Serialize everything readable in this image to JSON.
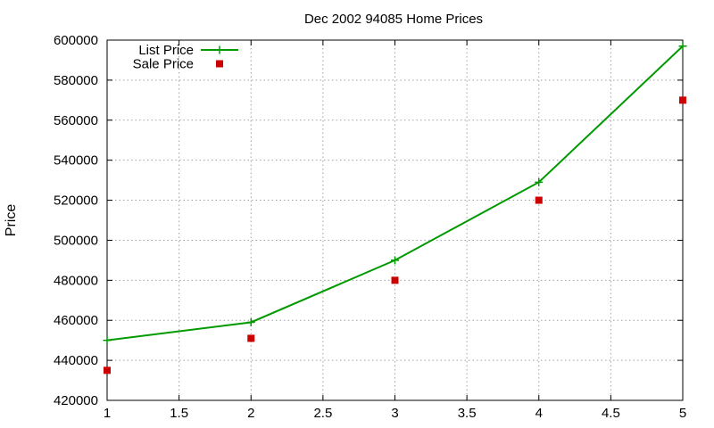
{
  "chart_data": {
    "type": "line",
    "title": "Dec 2002 94085 Home Prices",
    "xlabel": "",
    "ylabel": "Price",
    "xlim": [
      1,
      5
    ],
    "ylim": [
      420000,
      600000
    ],
    "x_ticks": [
      "1",
      "1.5",
      "2",
      "2.5",
      "3",
      "3.5",
      "4",
      "4.5",
      "5"
    ],
    "y_ticks": [
      "420000",
      "440000",
      "460000",
      "480000",
      "500000",
      "520000",
      "540000",
      "560000",
      "580000",
      "600000"
    ],
    "grid": true,
    "legend_position": "top-left",
    "series": [
      {
        "name": "List Price",
        "style": "line+plus",
        "color": "#009900",
        "x": [
          1,
          2,
          3,
          4,
          5
        ],
        "values": [
          450000,
          459000,
          490000,
          529000,
          597000
        ]
      },
      {
        "name": "Sale Price",
        "style": "square-points",
        "color": "#cc0000",
        "x": [
          1,
          2,
          3,
          4,
          5
        ],
        "values": [
          435000,
          451000,
          480000,
          520000,
          570000
        ]
      }
    ]
  }
}
